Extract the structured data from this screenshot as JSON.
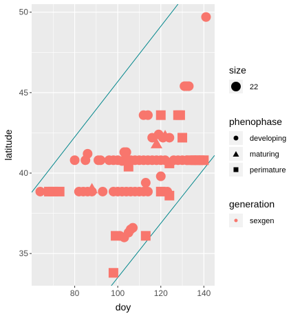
{
  "chart_data": {
    "type": "scatter",
    "title": "",
    "xlabel": "doy",
    "ylabel": "latitude",
    "xlim": [
      60,
      145
    ],
    "ylim": [
      33,
      50.5
    ],
    "x_ticks": [
      80,
      100,
      120,
      140
    ],
    "y_ticks": [
      35,
      40,
      45,
      50
    ],
    "grid": true,
    "colors": {
      "panel": "#ebebeb",
      "grid": "#ffffff",
      "point": "#f8766d",
      "line": "#00868b",
      "legend_key": "#f2f2f2"
    },
    "lines": [
      {
        "x": [
          60,
          128
        ],
        "y": [
          38.8,
          50.5
        ]
      },
      {
        "x": [
          97,
          145
        ],
        "y": [
          33.0,
          41.1
        ]
      }
    ],
    "points": [
      {
        "x": 141,
        "y": 49.7,
        "phenophase": "developing"
      },
      {
        "x": 64,
        "y": 38.85,
        "phenophase": "developing"
      },
      {
        "x": 68,
        "y": 38.85,
        "phenophase": "perimature"
      },
      {
        "x": 70,
        "y": 38.85,
        "phenophase": "perimature"
      },
      {
        "x": 73,
        "y": 38.85,
        "phenophase": "perimature"
      },
      {
        "x": 80,
        "y": 40.8,
        "phenophase": "developing"
      },
      {
        "x": 82,
        "y": 38.85,
        "phenophase": "developing"
      },
      {
        "x": 84,
        "y": 38.85,
        "phenophase": "developing"
      },
      {
        "x": 85,
        "y": 40.8,
        "phenophase": "developing"
      },
      {
        "x": 86,
        "y": 41.2,
        "phenophase": "developing"
      },
      {
        "x": 86,
        "y": 38.85,
        "phenophase": "developing"
      },
      {
        "x": 88,
        "y": 39.0,
        "phenophase": "maturing"
      },
      {
        "x": 88,
        "y": 38.85,
        "phenophase": "developing"
      },
      {
        "x": 91,
        "y": 40.8,
        "phenophase": "developing"
      },
      {
        "x": 92,
        "y": 40.8,
        "phenophase": "developing"
      },
      {
        "x": 93,
        "y": 38.85,
        "phenophase": "developing"
      },
      {
        "x": 96,
        "y": 40.8,
        "phenophase": "developing"
      },
      {
        "x": 98,
        "y": 40.8,
        "phenophase": "developing"
      },
      {
        "x": 98,
        "y": 38.85,
        "phenophase": "developing"
      },
      {
        "x": 100,
        "y": 40.8,
        "phenophase": "developing"
      },
      {
        "x": 100,
        "y": 38.85,
        "phenophase": "developing"
      },
      {
        "x": 101,
        "y": 36.1,
        "phenophase": "developing"
      },
      {
        "x": 102,
        "y": 40.75,
        "phenophase": "developing"
      },
      {
        "x": 102,
        "y": 38.85,
        "phenophase": "developing"
      },
      {
        "x": 103,
        "y": 41.3,
        "phenophase": "developing"
      },
      {
        "x": 103,
        "y": 36.0,
        "phenophase": "developing"
      },
      {
        "x": 104,
        "y": 41.3,
        "phenophase": "developing"
      },
      {
        "x": 104,
        "y": 40.8,
        "phenophase": "developing"
      },
      {
        "x": 104,
        "y": 38.85,
        "phenophase": "developing"
      },
      {
        "x": 105,
        "y": 40.4,
        "phenophase": "perimature"
      },
      {
        "x": 105,
        "y": 36.3,
        "phenophase": "developing"
      },
      {
        "x": 106,
        "y": 40.8,
        "phenophase": "developing"
      },
      {
        "x": 106,
        "y": 38.85,
        "phenophase": "developing"
      },
      {
        "x": 106,
        "y": 36.5,
        "phenophase": "developing"
      },
      {
        "x": 107,
        "y": 36.6,
        "phenophase": "developing"
      },
      {
        "x": 108,
        "y": 40.8,
        "phenophase": "developing"
      },
      {
        "x": 108,
        "y": 38.85,
        "phenophase": "developing"
      },
      {
        "x": 110,
        "y": 40.8,
        "phenophase": "developing"
      },
      {
        "x": 110,
        "y": 38.85,
        "phenophase": "developing"
      },
      {
        "x": 112,
        "y": 43.6,
        "phenophase": "developing"
      },
      {
        "x": 112,
        "y": 40.8,
        "phenophase": "developing"
      },
      {
        "x": 112,
        "y": 38.85,
        "phenophase": "developing"
      },
      {
        "x": 113,
        "y": 39.4,
        "phenophase": "developing"
      },
      {
        "x": 113,
        "y": 36.1,
        "phenophase": "perimature"
      },
      {
        "x": 114,
        "y": 43.6,
        "phenophase": "developing"
      },
      {
        "x": 114,
        "y": 40.8,
        "phenophase": "developing"
      },
      {
        "x": 114,
        "y": 38.85,
        "phenophase": "developing"
      },
      {
        "x": 116,
        "y": 42.2,
        "phenophase": "developing"
      },
      {
        "x": 116,
        "y": 40.8,
        "phenophase": "developing"
      },
      {
        "x": 118,
        "y": 41.8,
        "phenophase": "maturing"
      },
      {
        "x": 118,
        "y": 40.8,
        "phenophase": "developing"
      },
      {
        "x": 119,
        "y": 42.4,
        "phenophase": "developing"
      },
      {
        "x": 120,
        "y": 43.6,
        "phenophase": "perimature"
      },
      {
        "x": 120,
        "y": 40.8,
        "phenophase": "developing"
      },
      {
        "x": 120,
        "y": 39.8,
        "phenophase": "developing"
      },
      {
        "x": 120,
        "y": 38.85,
        "phenophase": "perimature"
      },
      {
        "x": 121,
        "y": 42.2,
        "phenophase": "developing"
      },
      {
        "x": 122,
        "y": 42.3,
        "phenophase": "maturing"
      },
      {
        "x": 122,
        "y": 40.8,
        "phenophase": "developing"
      },
      {
        "x": 123,
        "y": 38.85,
        "phenophase": "developing"
      },
      {
        "x": 124,
        "y": 42.2,
        "phenophase": "developing"
      },
      {
        "x": 124,
        "y": 40.6,
        "phenophase": "perimature"
      },
      {
        "x": 124,
        "y": 38.6,
        "phenophase": "perimature"
      },
      {
        "x": 126,
        "y": 40.8,
        "phenophase": "developing"
      },
      {
        "x": 128,
        "y": 43.6,
        "phenophase": "perimature"
      },
      {
        "x": 128,
        "y": 40.8,
        "phenophase": "developing"
      },
      {
        "x": 129,
        "y": 43.6,
        "phenophase": "perimature"
      },
      {
        "x": 130,
        "y": 42.2,
        "phenophase": "perimature"
      },
      {
        "x": 130,
        "y": 40.8,
        "phenophase": "developing"
      },
      {
        "x": 131,
        "y": 45.4,
        "phenophase": "developing"
      },
      {
        "x": 132,
        "y": 45.4,
        "phenophase": "developing"
      },
      {
        "x": 132,
        "y": 40.8,
        "phenophase": "developing"
      },
      {
        "x": 133,
        "y": 45.4,
        "phenophase": "developing"
      },
      {
        "x": 134,
        "y": 40.8,
        "phenophase": "perimature"
      },
      {
        "x": 136,
        "y": 40.8,
        "phenophase": "perimature"
      },
      {
        "x": 138,
        "y": 40.8,
        "phenophase": "perimature"
      },
      {
        "x": 140,
        "y": 40.8,
        "phenophase": "perimature"
      },
      {
        "x": 98,
        "y": 33.8,
        "phenophase": "perimature"
      },
      {
        "x": 99,
        "y": 36.1,
        "phenophase": "perimature"
      }
    ],
    "legend": {
      "placement": "right",
      "size": {
        "title": "size",
        "items": [
          {
            "label": "22"
          }
        ]
      },
      "phenophase": {
        "title": "phenophase",
        "items": [
          {
            "label": "developing",
            "shape": "circle"
          },
          {
            "label": "maturing",
            "shape": "triangle"
          },
          {
            "label": "perimature",
            "shape": "square"
          }
        ]
      },
      "generation": {
        "title": "generation",
        "items": [
          {
            "label": "sexgen"
          }
        ]
      }
    }
  }
}
